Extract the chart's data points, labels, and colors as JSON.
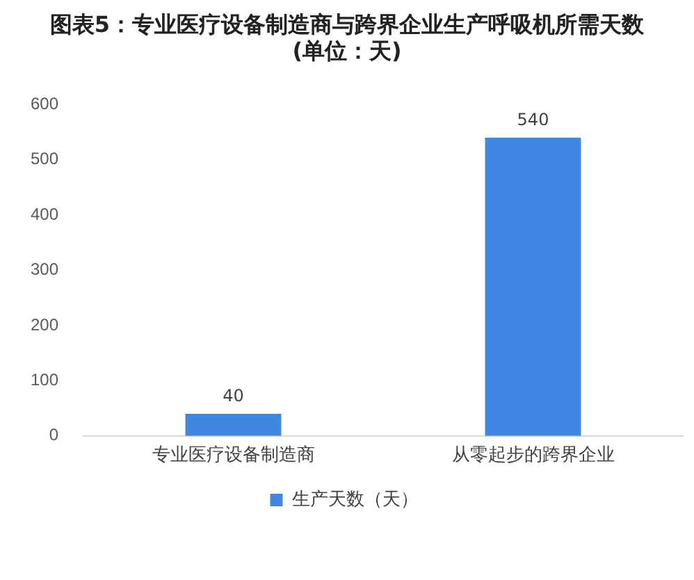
{
  "chart_data": {
    "type": "bar",
    "title": "图表5：专业医疗设备制造商与跨界企业生产呼吸机所需天数(单位：天)",
    "categories": [
      "专业医疗设备制造商",
      "从零起步的跨界企业"
    ],
    "series": [
      {
        "name": "生产天数（天）",
        "color": "#4186e0",
        "values": [
          40,
          540
        ]
      }
    ],
    "ylim": [
      0,
      600
    ],
    "yticks": [
      0,
      100,
      200,
      300,
      400,
      500,
      600
    ],
    "legend": "bottom",
    "data_labels": true
  }
}
